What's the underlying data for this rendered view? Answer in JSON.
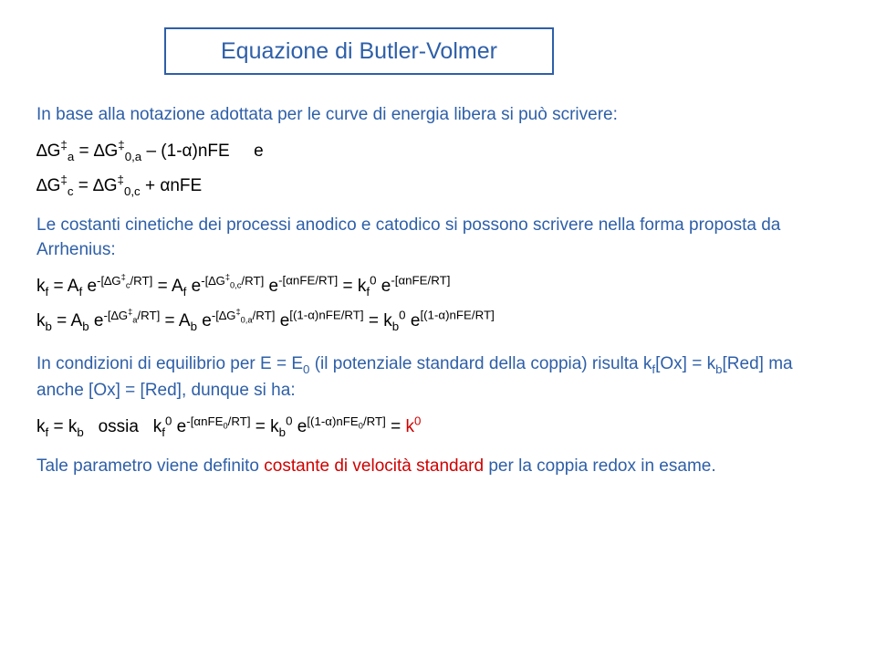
{
  "colors": {
    "blue": "#2E5FA8",
    "red": "#D00000",
    "black": "#000000"
  },
  "title": "Equazione di Butler-Volmer",
  "para1": "In base alla notazione adottata per le curve di energia libera si può scrivere:",
  "eq1a_lhs": "∆G",
  "eq1a_sub": "a",
  "eq1a_mid": " = ∆G",
  "eq1a_sub2": "0,a",
  "eq1a_tail": " – (1-α)nFE     e",
  "eq1b_lhs": "∆G",
  "eq1b_sub": "c",
  "eq1b_mid": " = ∆G",
  "eq1b_sub2": "0,c",
  "eq1b_tail": " + αnFE",
  "para2": "Le costanti cinetiche dei processi anodico e catodico si possono scrivere nella forma proposta da Arrhenius:",
  "para3a": "In condizioni di equilibrio per E = E",
  "para3b": " (il potenziale standard della coppia) risulta k",
  "para3c": "[Ox] = k",
  "para3d": "[Red] ma anche [Ox] = [Red], dunque si ha:",
  "para4": "Tale parametro viene definito ",
  "para4_red": "costante di velocità standard",
  "para4_tail": " per la coppia redox in esame."
}
